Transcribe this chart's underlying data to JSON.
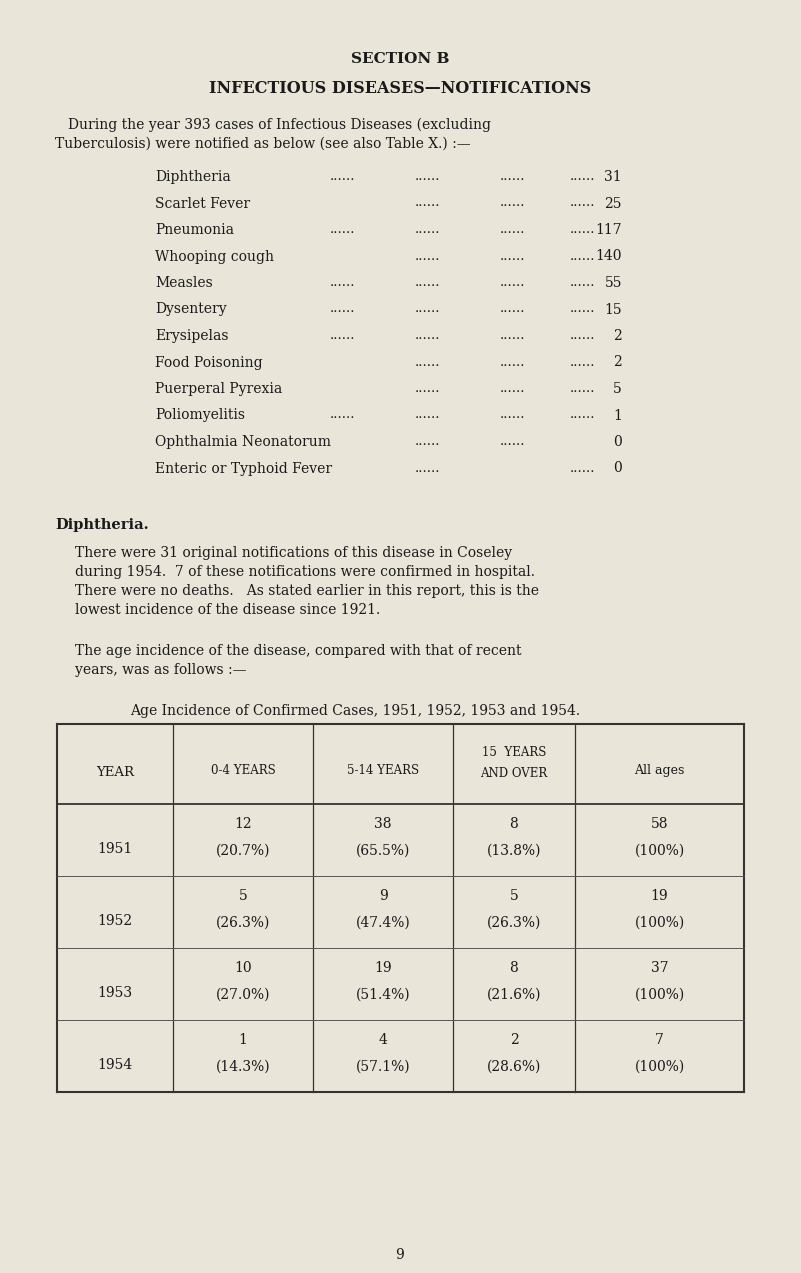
{
  "bg_color": "#e9e5d9",
  "text_color": "#1a1a1a",
  "section_title": "SECTION B",
  "main_title": "INFECTIOUS DISEASES—NOTIFICATIONS",
  "intro_line1": "During the year 393 cases of Infectious Diseases (excluding",
  "intro_line2": "Tuberculosis) were notified as below (see also Table X.) :—",
  "disease_list": [
    [
      "Diphtheria",
      "......",
      "......",
      "......",
      "......",
      "31"
    ],
    [
      "Scarlet Fever",
      "",
      "......",
      "......",
      "......",
      "25"
    ],
    [
      "Pneumonia",
      "......",
      "......",
      "......",
      "......",
      "117"
    ],
    [
      "Whooping cough",
      "",
      "......",
      "......",
      "......",
      "140"
    ],
    [
      "Measles",
      "......",
      "......",
      "......",
      "......",
      "55"
    ],
    [
      "Dysentery",
      "......",
      "......",
      "......",
      "......",
      "15"
    ],
    [
      "Erysipelas",
      "......",
      "......",
      "......",
      "......",
      "2"
    ],
    [
      "Food Poisoning",
      "",
      "......",
      "......",
      "......",
      "2"
    ],
    [
      "Puerperal Pyrexia",
      "",
      "......",
      "......",
      "......",
      "5"
    ],
    [
      "Poliomyelitis",
      "......",
      "......",
      "......",
      "......",
      "1"
    ],
    [
      "Ophthalmia Neonatorum",
      "",
      "......",
      "......",
      "",
      "0"
    ],
    [
      "Enteric or Typhoid Fever",
      "",
      "......",
      "",
      "......",
      "0"
    ]
  ],
  "diphtheria_heading": "Diphtheria.",
  "diphtheria_para1_lines": [
    "There were 31 original notifications of this disease in Coseley",
    "during 1954.  7 of these notifications were confirmed in hospital.",
    "There were no deaths.   As stated earlier in this report, this is the",
    "lowest incidence of the disease since 1921."
  ],
  "diphtheria_para2_lines": [
    "The age incidence of the disease, compared with that of recent",
    "years, was as follows :—"
  ],
  "table_title": "Age Incidence of Confirmed Cases, 1951, 1952, 1953 and 1954.",
  "table_col0_header_line1": "Y",
  "table_col0_header_line2": "EAR",
  "table_headers_small": [
    "0-4  YEARS",
    "5-14  YEARS",
    "AND OVER",
    "All ages"
  ],
  "table_headers_small_top": [
    "",
    "",
    "15  YEARS",
    ""
  ],
  "table_data": [
    [
      "1951",
      "12",
      "(20.7%)",
      "38",
      "(65.5%)",
      "8",
      "(13.8%)",
      "58",
      "(100%)"
    ],
    [
      "1952",
      "5",
      "(26.3%)",
      "9",
      "(47.4%)",
      "5",
      "(26.3%)",
      "19",
      "(100%)"
    ],
    [
      "1953",
      "10",
      "(27.0%)",
      "19",
      "(51.4%)",
      "8",
      "(21.6%)",
      "37",
      "(100%)"
    ],
    [
      "1954",
      "1",
      "(14.3%)",
      "4",
      "(57.1%)",
      "2",
      "(28.6%)",
      "7",
      "(100%)"
    ]
  ],
  "page_number": "9"
}
